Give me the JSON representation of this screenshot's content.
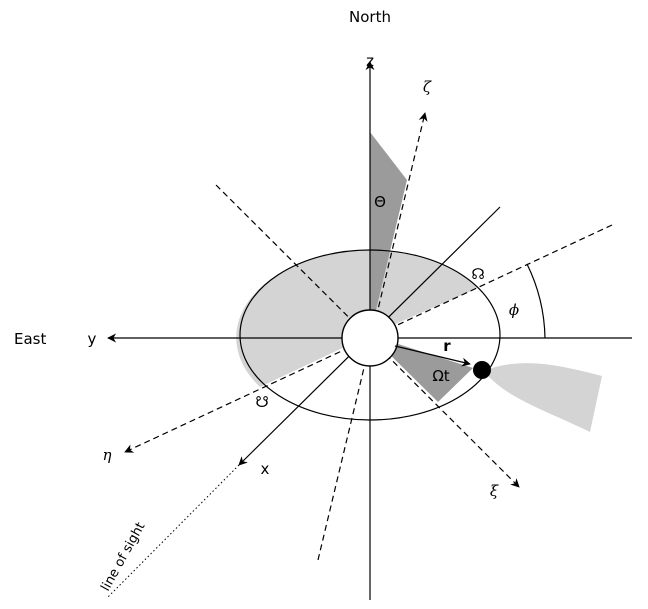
{
  "labels": {
    "north": "North",
    "east": "East",
    "z": "z",
    "y": "y",
    "x": "x",
    "zeta": "ζ",
    "eta": "η",
    "xi": "ξ",
    "theta": "Θ",
    "phi": "ϕ",
    "r": "r",
    "omega_t": "Ωt",
    "ascending_node": "☊",
    "descending_node": "☋",
    "line_of_sight": "line of sight"
  },
  "colors": {
    "line": "#000000",
    "dark_fill": "#9b9b9b",
    "light_fill": "#d4d4d4",
    "background": "#ffffff"
  }
}
